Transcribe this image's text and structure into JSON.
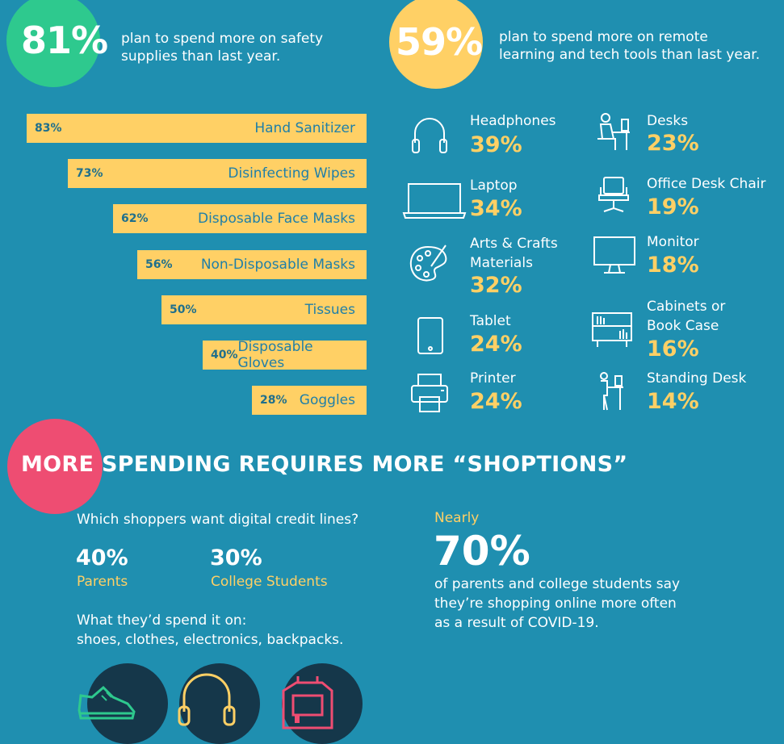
{
  "top_left": {
    "stat": "81%",
    "text_line1": "plan to spend more on safety",
    "text_line2": "supplies than last year."
  },
  "top_right": {
    "stat": "59%",
    "text_line1": "plan to spend more on remote",
    "text_line2": "learning and tech tools than last year."
  },
  "chart_data": {
    "type": "bar",
    "categories": [
      "Hand Sanitizer",
      "Disinfecting Wipes",
      "Disposable Face Masks",
      "Non-Disposable Masks",
      "Tissues",
      "Disposable Gloves",
      "Goggles"
    ],
    "values": [
      83,
      73,
      62,
      56,
      50,
      40,
      28
    ],
    "value_labels": [
      "83%",
      "73%",
      "62%",
      "56%",
      "50%",
      "40%",
      "28%"
    ],
    "orientation": "horizontal",
    "bar_color": "#ffd065"
  },
  "tech_items": [
    {
      "label": "Headphones",
      "value": "39%",
      "icon": "headphones-icon"
    },
    {
      "label": "Laptop",
      "value": "34%",
      "icon": "laptop-icon"
    },
    {
      "label": "Arts & Crafts",
      "label2": "Materials",
      "value": "32%",
      "icon": "palette-icon"
    },
    {
      "label": "Tablet",
      "value": "24%",
      "icon": "tablet-icon"
    },
    {
      "label": "Printer",
      "value": "24%",
      "icon": "printer-icon"
    },
    {
      "label": "Desks",
      "value": "23%",
      "icon": "desk-icon"
    },
    {
      "label": "Office Desk Chair",
      "value": "19%",
      "icon": "chair-icon"
    },
    {
      "label": "Monitor",
      "value": "18%",
      "icon": "monitor-icon"
    },
    {
      "label": "Cabinets or",
      "label2": "Book Case",
      "value": "16%",
      "icon": "bookcase-icon"
    },
    {
      "label": "Standing Desk",
      "value": "14%",
      "icon": "standing-desk-icon"
    }
  ],
  "bottom": {
    "headline": "MORE SPENDING REQUIRES MORE “SHOPTIONS”",
    "question": "Which shoppers want digital credit lines?",
    "parents_value": "40%",
    "parents_label": "Parents",
    "college_value": "30%",
    "college_label": "College Students",
    "spend_line1": "What they’d spend it on:",
    "spend_line2": "shoes, clothes, electronics, backpacks.",
    "nearly": "Nearly",
    "online_value": "70%",
    "online_line1": "of parents and college students say",
    "online_line2": "they’re shopping online more often",
    "online_line3": "as a result of COVID-19."
  },
  "colors": {
    "background": "#1f8fb0",
    "green": "#2ec98e",
    "yellow": "#ffd065",
    "pink": "#ee4d72",
    "dark": "#15374a"
  }
}
